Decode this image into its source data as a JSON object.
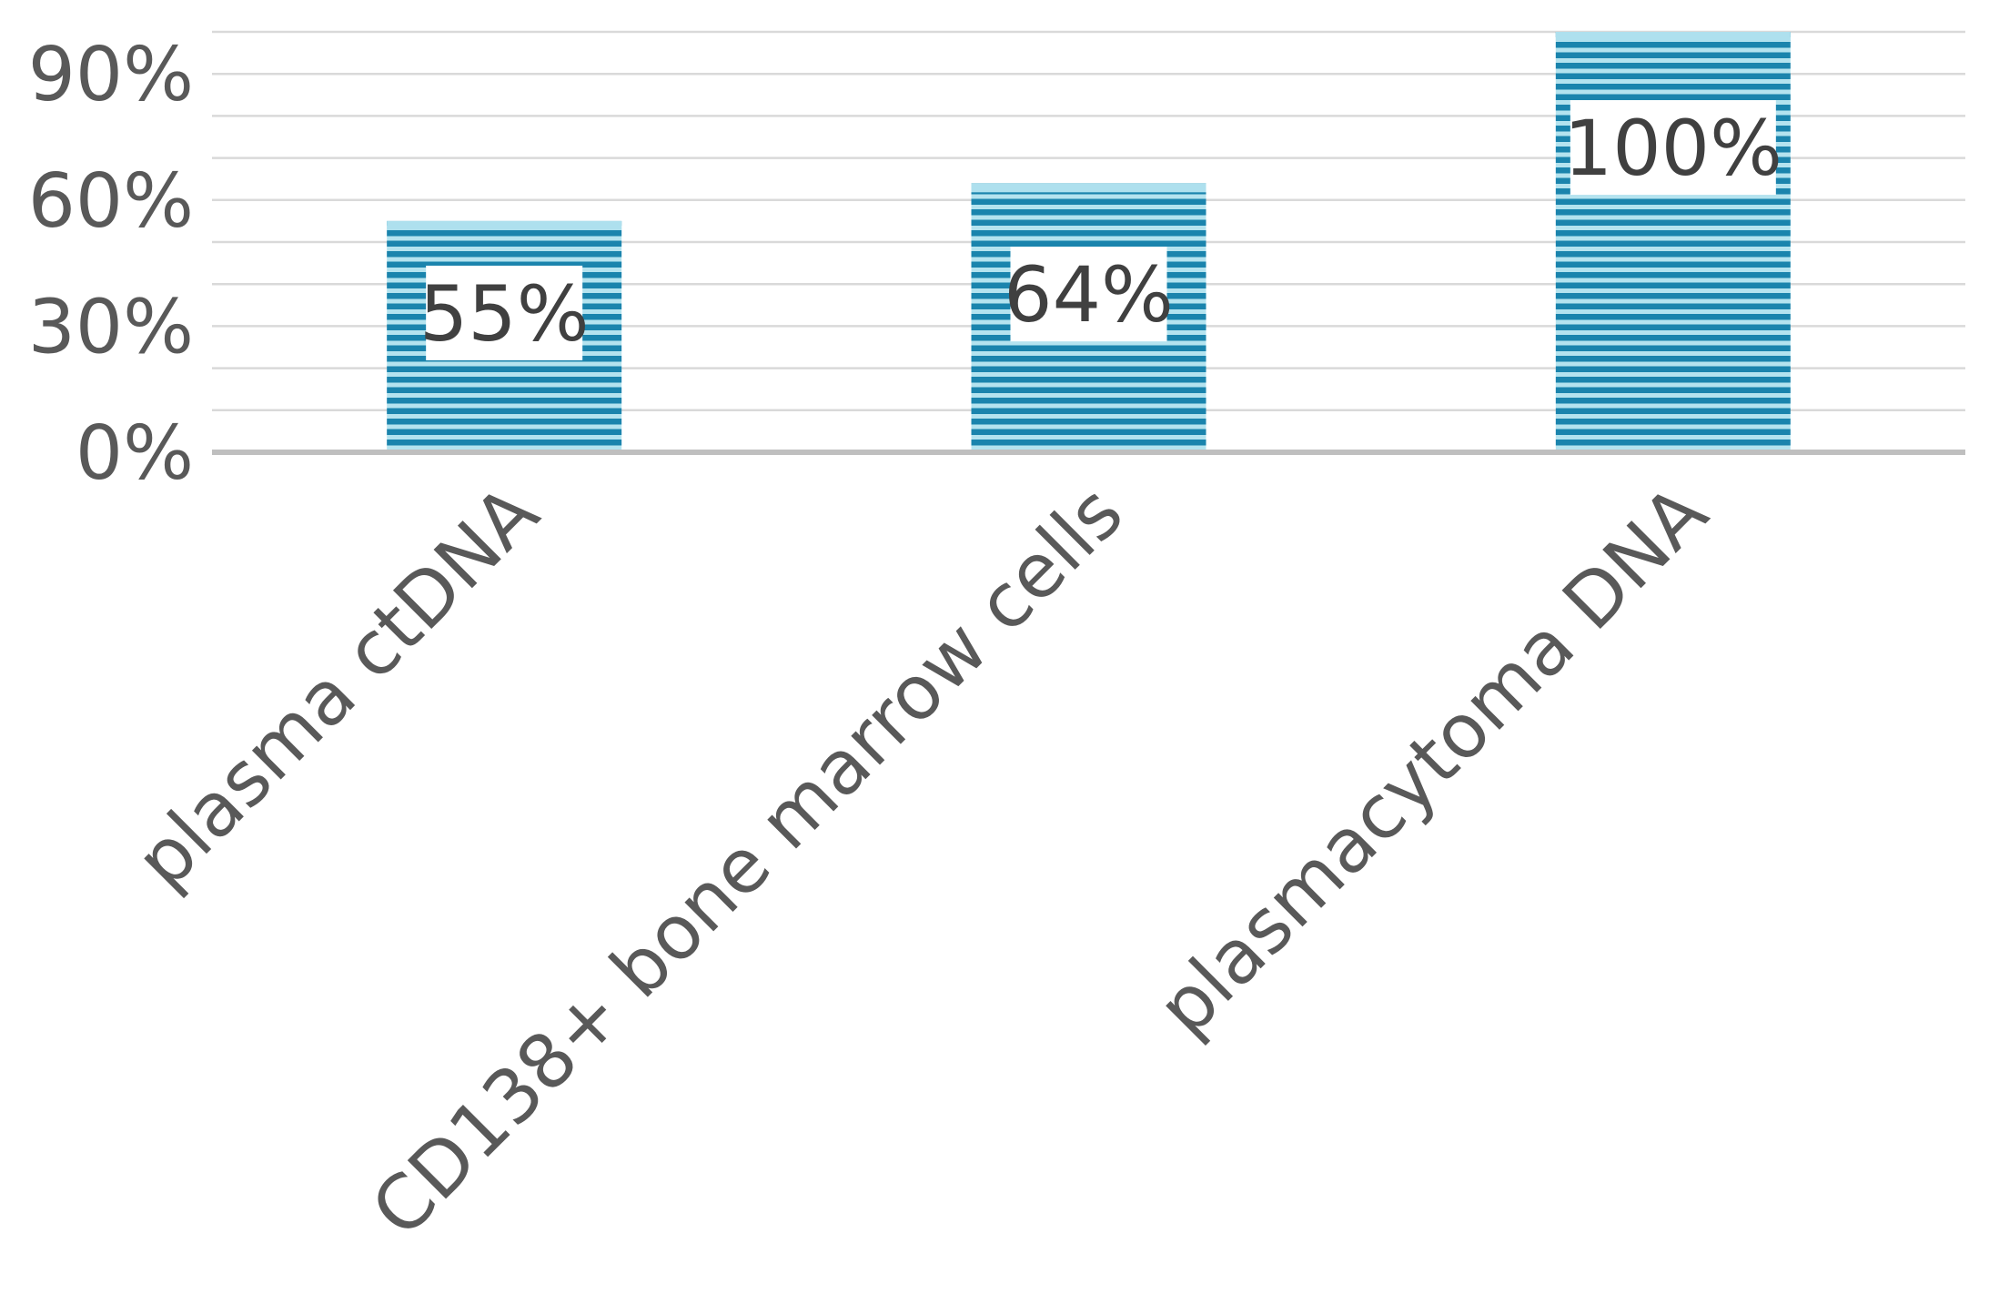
{
  "chart_data": {
    "type": "bar",
    "categories": [
      "plasma ctDNA",
      "CD138+ bone marrow cells",
      "plasmacytoma DNA"
    ],
    "values": [
      55,
      64,
      100
    ],
    "data_labels": [
      "55%",
      "64%",
      "100%"
    ],
    "ylim": [
      0,
      100
    ],
    "y_ticks": [
      0,
      30,
      60,
      90
    ],
    "y_tick_labels": [
      "0%",
      "30%",
      "60%",
      "90%"
    ],
    "minor_gridlines": true,
    "bar_pattern": "horizontal-stripes",
    "colors": {
      "bar_fill": "#1a84ad",
      "bar_background": "#b4e3ef",
      "bar_top": "#aee0ee",
      "gridline": "#d9d9d9",
      "axis_line": "#bfbfbf",
      "text": "#595959"
    }
  }
}
